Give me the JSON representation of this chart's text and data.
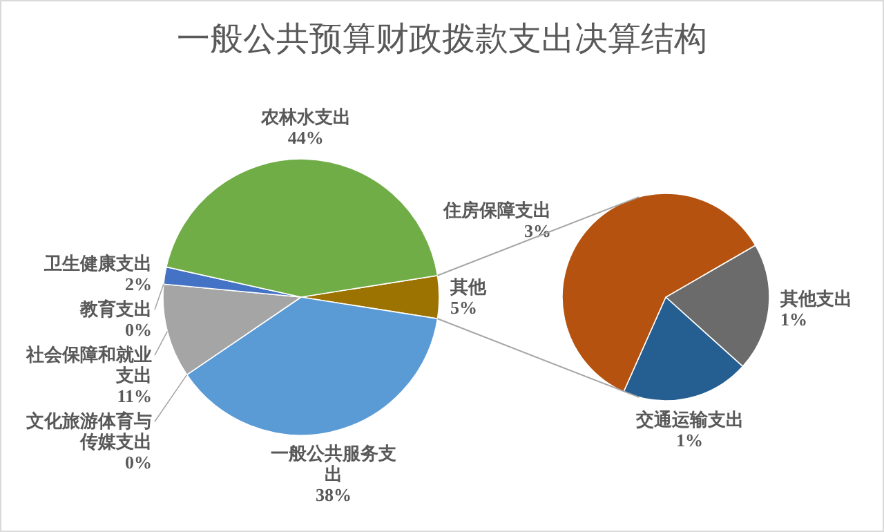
{
  "chart_data": [
    {
      "type": "pie",
      "title": "一般公共预算财政拨款支出决算结构",
      "categories": [
        "其他",
        "一般公共服务支出",
        "文化旅游体育与传媒支出",
        "社会保障和就业支出",
        "教育支出",
        "卫生健康支出",
        "农林水支出"
      ],
      "values": [
        5,
        38,
        0,
        11,
        0,
        2,
        44
      ],
      "value_labels": [
        "5%",
        "38%",
        "0%",
        "11%",
        "0%",
        "2%",
        "44%"
      ],
      "colors": [
        "#9c7300",
        "#5b9bd5",
        "#ed7d31",
        "#a5a5a5",
        "#ffc000",
        "#4472c4",
        "#70ad47"
      ]
    },
    {
      "type": "pie",
      "categories": [
        "其他支出",
        "交通运输支出",
        "住房保障支出"
      ],
      "values": [
        1,
        1,
        3
      ],
      "value_labels": [
        "1%",
        "1%",
        "3%"
      ],
      "colors": [
        "#6b6b6b",
        "#255e91",
        "#b5520f"
      ]
    }
  ]
}
